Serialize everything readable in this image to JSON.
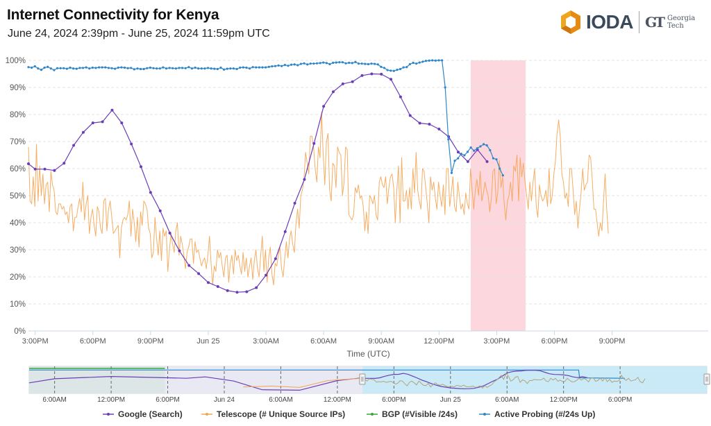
{
  "header": {
    "title": "Internet Connectivity for  Kenya",
    "subtitle": "June 24, 2024 2:39pm - June 25, 2024 11:59pm UTC"
  },
  "logo": {
    "brand": "IODA",
    "partner_mark": "GT",
    "partner_line1": "Georgia",
    "partner_line2": "Tech"
  },
  "colors": {
    "google": "#6a3db8",
    "telescope": "#f5a451",
    "bgp": "#3aa53a",
    "active_probing": "#2f86c8",
    "outage_band": "#fcd7dd",
    "navigator_selection": "#c5e8f7"
  },
  "chart_data": {
    "type": "line",
    "title": "Internet Connectivity for  Kenya",
    "xlabel": "Time (UTC)",
    "ylabel": "",
    "x_unit": "hours since Jun 24 00:00 UTC",
    "xlim": [
      14.65,
      50.0
    ],
    "ylim": [
      0,
      100
    ],
    "yticks": [
      0,
      10,
      20,
      30,
      40,
      50,
      60,
      70,
      80,
      90,
      100
    ],
    "ytick_labels": [
      "0%",
      "10%",
      "20%",
      "30%",
      "40%",
      "50%",
      "60%",
      "70%",
      "80%",
      "90%",
      "100%"
    ],
    "xticks": [
      15,
      18,
      21,
      24,
      27,
      30,
      33,
      36,
      39,
      42,
      45
    ],
    "xtick_labels": [
      "3:00PM",
      "6:00PM",
      "9:00PM",
      "Jun 25",
      "3:00AM",
      "6:00AM",
      "9:00AM",
      "12:00PM",
      "3:00PM",
      "6:00PM",
      "9:00PM"
    ],
    "grid": true,
    "outage_band": {
      "start": 37.65,
      "end": 40.5
    },
    "legend": {
      "placement": "bottom",
      "entries": [
        "Google (Search)",
        "Telescope (# Unique Source IPs)",
        "BGP (#Visible /24s)",
        "Active Probing (#/24s Up)"
      ]
    },
    "series": [
      {
        "name": "Google (Search)",
        "color_key": "google",
        "markers": true,
        "x": [
          14.65,
          15.0,
          15.5,
          16.0,
          16.5,
          17.0,
          17.5,
          18.0,
          18.5,
          19.0,
          19.5,
          20.0,
          20.5,
          21.0,
          21.5,
          22.0,
          22.5,
          23.0,
          23.5,
          24.0,
          24.5,
          25.0,
          25.5,
          26.0,
          26.5,
          27.0,
          27.5,
          28.0,
          28.5,
          29.0,
          29.5,
          30.0,
          30.5,
          31.0,
          31.5,
          32.0,
          32.5,
          33.0,
          33.5,
          34.0,
          34.5,
          35.0,
          35.5,
          36.0,
          36.5,
          37.0,
          37.5,
          38.0,
          38.5,
          39.0
        ],
        "values": [
          61.8,
          59.8,
          59.8,
          59.3,
          62.0,
          68.6,
          73.4,
          76.9,
          77.3,
          81.6,
          76.9,
          69.1,
          60.7,
          51.2,
          44.4,
          36.2,
          29.6,
          24.2,
          21.2,
          17.9,
          16.4,
          14.9,
          14.3,
          14.5,
          16.0,
          20.6,
          26.7,
          36.7,
          47.2,
          56.0,
          69.3,
          83.0,
          88.4,
          91.3,
          92.1,
          94.4,
          95.0,
          94.9,
          93.0,
          86.5,
          79.6,
          76.8,
          76.4,
          74.6,
          71.8,
          66.1,
          62.6,
          67.0,
          62.6,
          null
        ]
      },
      {
        "name": "Telescope (# Unique Source IPs)",
        "color_key": "telescope",
        "markers": false,
        "x_start": 14.65,
        "x_step": 0.0833,
        "values": [
          68,
          48,
          47,
          57,
          46,
          69,
          48,
          61,
          50,
          58,
          47,
          54,
          55,
          44,
          59,
          54,
          52,
          44,
          43,
          47,
          47,
          45,
          46,
          43,
          44,
          40,
          46,
          47,
          37,
          42,
          42,
          46,
          49,
          44,
          55,
          41,
          47,
          50,
          36,
          42,
          45,
          39,
          35,
          46,
          44,
          38,
          36,
          48,
          49,
          37,
          45,
          48,
          42,
          36,
          37,
          38,
          39,
          27,
          38,
          41,
          42,
          41,
          43,
          48,
          35,
          45,
          40,
          33,
          42,
          31,
          44,
          39,
          48,
          47,
          45,
          38,
          36,
          27,
          29,
          42,
          34,
          28,
          37,
          26,
          38,
          35,
          37,
          22,
          30,
          36,
          32,
          29,
          37,
          40,
          28,
          35,
          32,
          28,
          23,
          29,
          31,
          34,
          34,
          25,
          33,
          29,
          30,
          27,
          24,
          26,
          27,
          23,
          28,
          35,
          25,
          17,
          24,
          22,
          30,
          27,
          29,
          24,
          20,
          27,
          28,
          18,
          25,
          28,
          21,
          30,
          26,
          28,
          24,
          21,
          29,
          22,
          27,
          20,
          24,
          27,
          19,
          26,
          30,
          23,
          20,
          28,
          35,
          22,
          30,
          18,
          27,
          31,
          21,
          17,
          25,
          24,
          28,
          31,
          23,
          20,
          27,
          33,
          27,
          34,
          37,
          32,
          29,
          40,
          45,
          38,
          50,
          52,
          56,
          66,
          62,
          58,
          72,
          72,
          68,
          60,
          55,
          68,
          64,
          81,
          65,
          54,
          70,
          73,
          52,
          48,
          62,
          61,
          53,
          68,
          66,
          65,
          50,
          55,
          68,
          67,
          43,
          42,
          41,
          43,
          53,
          51,
          54,
          49,
          50,
          46,
          37,
          44,
          36,
          50,
          49,
          47,
          50,
          43,
          41,
          55,
          57,
          54,
          53,
          57,
          47,
          53,
          57,
          58,
          53,
          40,
          52,
          61,
          40,
          64,
          48,
          48,
          52,
          45,
          53,
          45,
          60,
          51,
          66,
          52,
          48,
          45,
          60,
          59,
          53,
          47,
          40,
          57,
          52,
          55,
          49,
          45,
          55,
          50,
          46,
          54,
          43,
          60,
          60,
          46,
          51,
          57,
          46,
          44,
          55,
          50,
          45,
          47,
          43,
          51,
          47,
          45,
          60,
          52,
          45,
          52,
          56,
          50,
          59,
          48,
          51,
          55,
          52,
          50,
          44,
          49,
          59,
          60,
          47,
          51,
          63,
          53,
          57,
          47,
          41,
          48,
          50,
          55,
          48,
          61,
          59,
          65,
          48,
          64,
          57,
          62,
          55,
          50,
          45,
          55,
          48,
          55,
          60,
          46,
          42,
          54,
          50,
          48,
          49,
          52,
          46,
          60,
          47,
          50,
          58,
          63,
          73,
          78,
          72,
          58,
          55,
          49,
          51,
          46,
          60,
          60,
          52,
          43,
          48,
          38,
          45,
          51,
          60,
          52,
          54,
          55,
          65,
          64,
          56,
          45,
          45,
          40,
          35,
          40,
          37,
          48,
          58,
          45,
          36
        ]
      },
      {
        "name": "BGP (#Visible /24s)",
        "color_key": "bgp",
        "markers": true,
        "x": [],
        "values": []
      },
      {
        "name": "Active Probing (#/24s Up)",
        "color_key": "active_probing",
        "markers": true,
        "x_start": 14.65,
        "x_step": 0.1667,
        "values": [
          97.5,
          97.3,
          97.8,
          97.0,
          96.5,
          97.3,
          97.6,
          97.0,
          96.4,
          97.1,
          97.1,
          97.1,
          96.9,
          97.3,
          97.0,
          96.9,
          97.2,
          97.2,
          97.4,
          97.0,
          97.3,
          97.2,
          97.4,
          97.4,
          97.4,
          97.2,
          97.1,
          96.9,
          97.3,
          97.4,
          97.3,
          97.1,
          97.2,
          96.7,
          97.0,
          96.8,
          96.8,
          97.1,
          97.3,
          97.1,
          97.0,
          97.0,
          97.4,
          97.0,
          97.2,
          97.1,
          97.0,
          97.2,
          97.2,
          97.1,
          97.5,
          97.0,
          97.3,
          97.0,
          97.0,
          97.0,
          97.2,
          97.0,
          96.9,
          96.8,
          97.3,
          96.6,
          96.9,
          97.0,
          97.0,
          96.8,
          97.3,
          97.4,
          97.3,
          97.0,
          97.5,
          97.4,
          97.4,
          97.4,
          97.4,
          97.6,
          97.8,
          97.9,
          98.1,
          97.9,
          98.3,
          98.0,
          98.4,
          98.5,
          98.2,
          98.7,
          98.9,
          98.5,
          98.8,
          98.8,
          98.9,
          99.0,
          99.2,
          99.0,
          98.6,
          99.1,
          99.2,
          99.3,
          99.3,
          98.9,
          99.1,
          99.0,
          99.4,
          98.8,
          98.8,
          98.7,
          98.6,
          98.8,
          98.7,
          98.5,
          97.6,
          97.2,
          96.4,
          96.2,
          96.1,
          96.5,
          96.8,
          97.4,
          97.5,
          98.6,
          99.1,
          98.8,
          99.2,
          99.5,
          99.8,
          99.9,
          100.0,
          99.9,
          100.0,
          100.0,
          90.0,
          70.8,
          58.4,
          62.9,
          63.8,
          65.5,
          64.9,
          66.2,
          67.8,
          66.6,
          67.5,
          68.2,
          69.0,
          68.6,
          66.8,
          63.8,
          63.4,
          60.0,
          57.5
        ]
      }
    ],
    "active_probing_drop_index": 129
  },
  "navigator": {
    "xtick_labels": [
      "6:00AM",
      "12:00PM",
      "6:00PM",
      "Jun 24",
      "6:00AM",
      "12:00PM",
      "6:00PM",
      "Jun 25",
      "6:00AM",
      "12:00PM",
      "6:00PM"
    ],
    "selection": {
      "start_label": "Jun 24 2:39pm",
      "end_label": "Jun 25 11:59pm"
    }
  }
}
